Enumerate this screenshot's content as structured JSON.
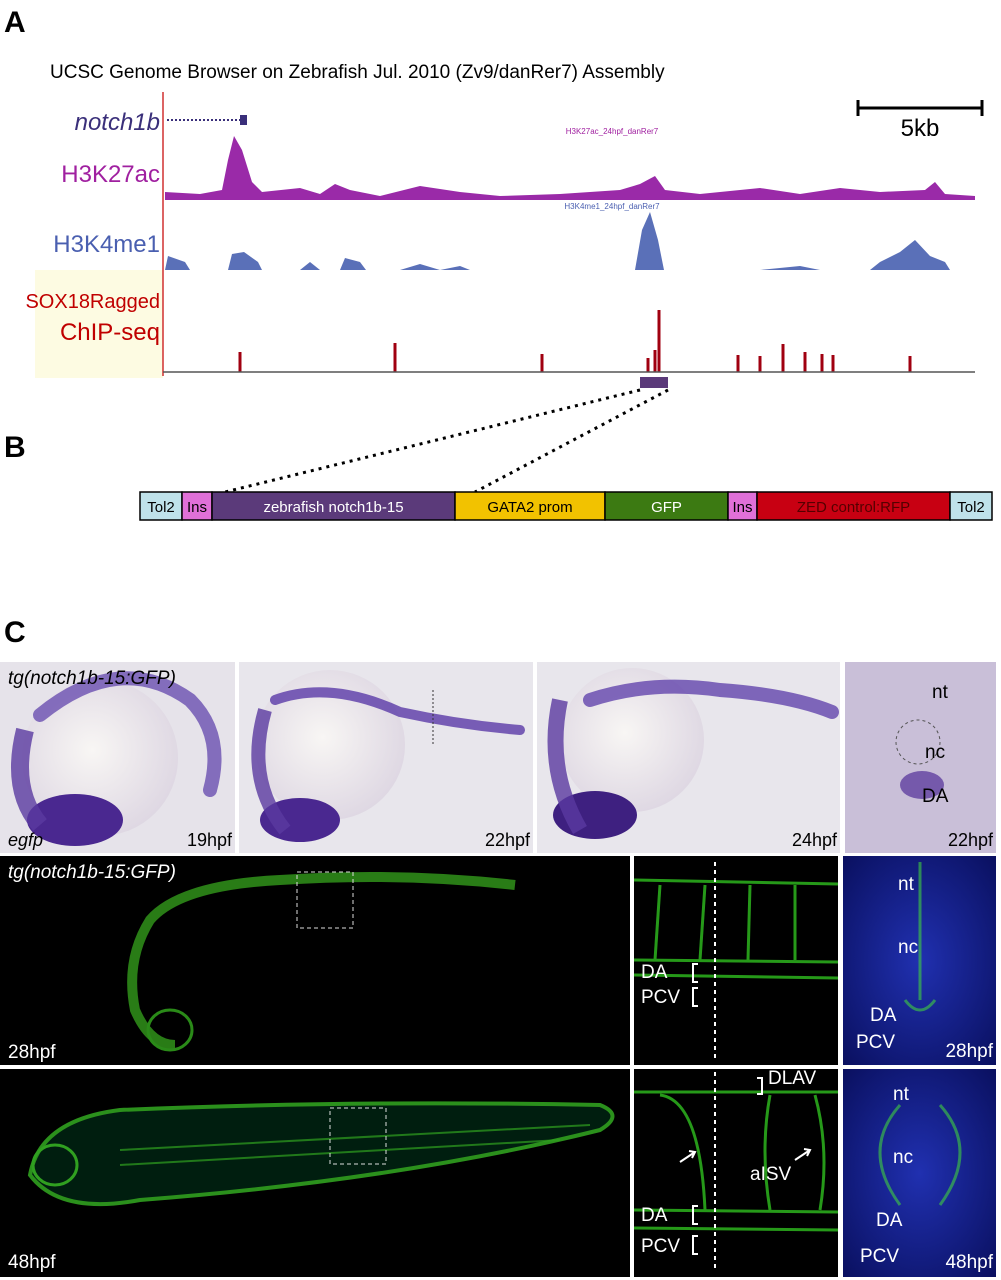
{
  "panel_a": {
    "label": "A",
    "title": "UCSC Genome Browser on Zebrafish Jul. 2010 (Zv9/danRer7) Assembly",
    "scale_bar": "5kb",
    "gene": "notch1b",
    "tracks": [
      {
        "name": "H3K27ac",
        "sublabel": "H3K27ac_24hpf_danRer7"
      },
      {
        "name": "H3K4me1",
        "sublabel": "H3K4me1_24hpf_danRer7"
      },
      {
        "name": "SOX18Ragged",
        "name_line2": "ChIP-seq"
      }
    ]
  },
  "panel_b": {
    "label": "B",
    "segments": [
      "Tol2",
      "Ins",
      "zebrafish notch1b-15",
      "GATA2 prom",
      "GFP",
      "Ins",
      "ZED control:RFP",
      "Tol2"
    ]
  },
  "panel_c": {
    "label": "C",
    "row1": {
      "line": "tg(notch1b-15:GFP)",
      "probe": "egfp",
      "stages": [
        "19hpf",
        "22hpf",
        "24hpf",
        "22hpf"
      ],
      "section": [
        "nt",
        "nc",
        "DA"
      ]
    },
    "row2": {
      "line": "tg(notch1b-15:GFP)",
      "stage": "28hpf",
      "zoom": [
        "DA",
        "PCV"
      ],
      "section": [
        "nt",
        "nc",
        "DA",
        "PCV",
        "28hpf"
      ]
    },
    "row3": {
      "stage": "48hpf",
      "zoom": [
        "DLAV",
        "aISV",
        "DA",
        "PCV"
      ],
      "section": [
        "nt",
        "nc",
        "DA",
        "PCV",
        "48hpf"
      ]
    }
  }
}
